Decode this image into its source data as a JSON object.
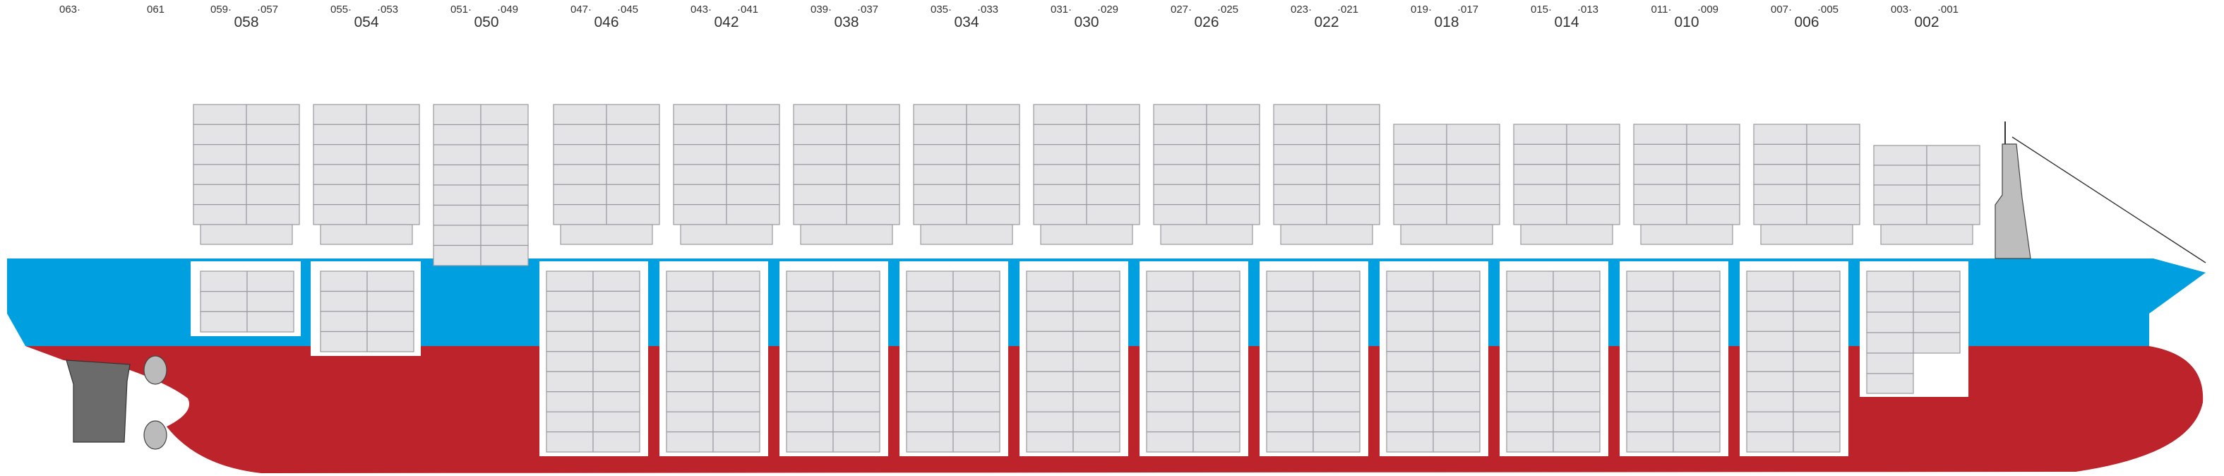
{
  "extra_labels": [
    "063·",
    "061"
  ],
  "bays": [
    {
      "label": "058",
      "aft": "059·",
      "fore": "·057"
    },
    {
      "label": "054",
      "aft": "055·",
      "fore": "·053"
    },
    {
      "label": "050",
      "aft": "051·",
      "fore": "·049"
    },
    {
      "label": "046",
      "aft": "047·",
      "fore": "·045"
    },
    {
      "label": "042",
      "aft": "043·",
      "fore": "·041"
    },
    {
      "label": "038",
      "aft": "039·",
      "fore": "·037"
    },
    {
      "label": "034",
      "aft": "035·",
      "fore": "·033"
    },
    {
      "label": "030",
      "aft": "031·",
      "fore": "·029"
    },
    {
      "label": "026",
      "aft": "027·",
      "fore": "·025"
    },
    {
      "label": "022",
      "aft": "023·",
      "fore": "·021"
    },
    {
      "label": "018",
      "aft": "019·",
      "fore": "·017"
    },
    {
      "label": "014",
      "aft": "015·",
      "fore": "·013"
    },
    {
      "label": "010",
      "aft": "011·",
      "fore": "·009"
    },
    {
      "label": "006",
      "aft": "007·",
      "fore": "·005"
    },
    {
      "label": "002",
      "aft": "003·",
      "fore": "·001"
    }
  ]
}
